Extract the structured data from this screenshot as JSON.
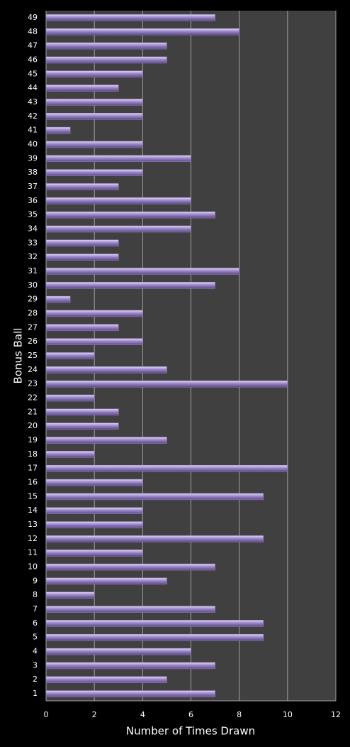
{
  "chart_data": {
    "type": "hbar",
    "x_label": "Number of Times Drawn",
    "y_label": "Bonus Ball",
    "categories": [
      "1",
      "2",
      "3",
      "4",
      "5",
      "6",
      "7",
      "8",
      "9",
      "10",
      "11",
      "12",
      "13",
      "14",
      "15",
      "16",
      "17",
      "18",
      "19",
      "20",
      "21",
      "22",
      "23",
      "24",
      "25",
      "26",
      "27",
      "28",
      "29",
      "30",
      "31",
      "32",
      "33",
      "34",
      "35",
      "36",
      "37",
      "38",
      "39",
      "40",
      "41",
      "42",
      "43",
      "44",
      "45",
      "46",
      "47",
      "48",
      "49"
    ],
    "values": [
      7,
      5,
      7,
      6,
      9,
      9,
      7,
      2,
      5,
      7,
      4,
      9,
      4,
      4,
      9,
      4,
      10,
      2,
      5,
      3,
      3,
      2,
      10,
      5,
      2,
      4,
      3,
      4,
      1,
      7,
      8,
      3,
      3,
      6,
      7,
      6,
      3,
      4,
      6,
      4,
      1,
      4,
      4,
      3,
      4,
      5,
      5,
      8,
      7
    ],
    "color": "#9b86c8",
    "xlim": [
      0,
      12
    ],
    "xticks": [
      0,
      2,
      4,
      6,
      8,
      10,
      12
    ],
    "grid": true
  }
}
